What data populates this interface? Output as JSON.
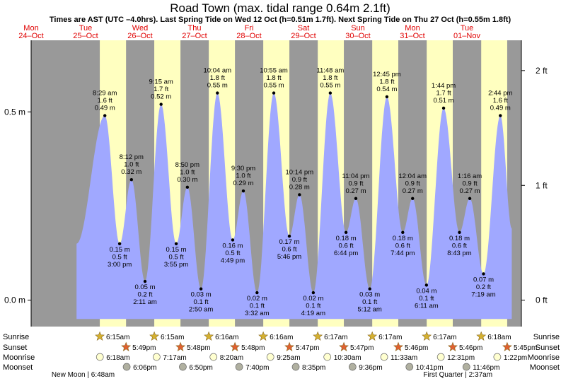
{
  "chart_data": {
    "type": "area",
    "title": "Road Town (max. tidal range 0.64m 2.1ft)",
    "subtitle": "Times are AST (UTC –4.0hrs). Last Spring Tide on Wed 12 Oct (h=0.51m 1.7ft). Next Spring Tide on Thu 27 Oct (h=0.55m 1.8ft)",
    "xlim": [
      "2022-10-24 00:00",
      "2022-11-02 00:00"
    ],
    "ylim_m": [
      -0.07,
      0.69
    ],
    "left_ticks": [
      {
        "value": 0.5,
        "label": "0.5 m"
      },
      {
        "value": 0.0,
        "label": "0.0 m"
      }
    ],
    "right_ticks": [
      {
        "value_ft": 2,
        "label": "2 ft"
      },
      {
        "value_ft": 1,
        "label": "1 ft"
      },
      {
        "value_ft": 0,
        "label": "0 ft"
      }
    ],
    "days": [
      {
        "dow": "Mon",
        "date": "24–Oct"
      },
      {
        "dow": "Tue",
        "date": "25–Oct"
      },
      {
        "dow": "Wed",
        "date": "26–Oct"
      },
      {
        "dow": "Thu",
        "date": "27–Oct"
      },
      {
        "dow": "Fri",
        "date": "28–Oct"
      },
      {
        "dow": "Sat",
        "date": "29–Oct"
      },
      {
        "dow": "Sun",
        "date": "30–Oct"
      },
      {
        "dow": "Mon",
        "date": "31–Oct"
      },
      {
        "dow": "Tue",
        "date": "01–Nov"
      }
    ],
    "tides": [
      {
        "date": "2022-10-25",
        "time": "08:29",
        "label": "8:29 am",
        "m": 0.49,
        "ft": 1.6,
        "type": "high"
      },
      {
        "date": "2022-10-25",
        "time": "15:00",
        "label": "3:00 pm",
        "m": 0.15,
        "ft": 0.5,
        "type": "low"
      },
      {
        "date": "2022-10-25",
        "time": "20:12",
        "label": "8:12 pm",
        "m": 0.32,
        "ft": 1.0,
        "type": "high"
      },
      {
        "date": "2022-10-26",
        "time": "02:11",
        "label": "2:11 am",
        "m": 0.05,
        "ft": 0.2,
        "type": "low"
      },
      {
        "date": "2022-10-26",
        "time": "09:15",
        "label": "9:15 am",
        "m": 0.52,
        "ft": 1.7,
        "type": "high"
      },
      {
        "date": "2022-10-26",
        "time": "15:55",
        "label": "3:55 pm",
        "m": 0.15,
        "ft": 0.5,
        "type": "low"
      },
      {
        "date": "2022-10-26",
        "time": "20:50",
        "label": "8:50 pm",
        "m": 0.3,
        "ft": 1.0,
        "type": "high"
      },
      {
        "date": "2022-10-27",
        "time": "02:50",
        "label": "2:50 am",
        "m": 0.03,
        "ft": 0.1,
        "type": "low"
      },
      {
        "date": "2022-10-27",
        "time": "10:04",
        "label": "10:04 am",
        "m": 0.55,
        "ft": 1.8,
        "type": "high"
      },
      {
        "date": "2022-10-27",
        "time": "16:49",
        "label": "4:49 pm",
        "m": 0.16,
        "ft": 0.5,
        "type": "low"
      },
      {
        "date": "2022-10-27",
        "time": "21:30",
        "label": "9:30 pm",
        "m": 0.29,
        "ft": 1.0,
        "type": "high"
      },
      {
        "date": "2022-10-28",
        "time": "03:32",
        "label": "3:32 am",
        "m": 0.02,
        "ft": 0.1,
        "type": "low"
      },
      {
        "date": "2022-10-28",
        "time": "10:55",
        "label": "10:55 am",
        "m": 0.55,
        "ft": 1.8,
        "type": "high"
      },
      {
        "date": "2022-10-28",
        "time": "17:46",
        "label": "5:46 pm",
        "m": 0.17,
        "ft": 0.6,
        "type": "low"
      },
      {
        "date": "2022-10-28",
        "time": "22:14",
        "label": "10:14 pm",
        "m": 0.28,
        "ft": 0.9,
        "type": "high"
      },
      {
        "date": "2022-10-29",
        "time": "04:19",
        "label": "4:19 am",
        "m": 0.02,
        "ft": 0.1,
        "type": "low"
      },
      {
        "date": "2022-10-29",
        "time": "11:48",
        "label": "11:48 am",
        "m": 0.55,
        "ft": 1.8,
        "type": "high"
      },
      {
        "date": "2022-10-29",
        "time": "18:44",
        "label": "6:44 pm",
        "m": 0.18,
        "ft": 0.6,
        "type": "low"
      },
      {
        "date": "2022-10-29",
        "time": "23:04",
        "label": "11:04 pm",
        "m": 0.27,
        "ft": 0.9,
        "type": "high"
      },
      {
        "date": "2022-10-30",
        "time": "05:12",
        "label": "5:12 am",
        "m": 0.03,
        "ft": 0.1,
        "type": "low"
      },
      {
        "date": "2022-10-30",
        "time": "12:45",
        "label": "12:45 pm",
        "m": 0.54,
        "ft": 1.8,
        "type": "high"
      },
      {
        "date": "2022-10-30",
        "time": "19:44",
        "label": "7:44 pm",
        "m": 0.18,
        "ft": 0.6,
        "type": "low"
      },
      {
        "date": "2022-10-31",
        "time": "00:04",
        "label": "12:04 am",
        "m": 0.27,
        "ft": 0.9,
        "type": "high"
      },
      {
        "date": "2022-10-31",
        "time": "06:11",
        "label": "6:11 am",
        "m": 0.04,
        "ft": 0.1,
        "type": "low"
      },
      {
        "date": "2022-10-31",
        "time": "13:44",
        "label": "1:44 pm",
        "m": 0.51,
        "ft": 1.7,
        "type": "high"
      },
      {
        "date": "2022-10-31",
        "time": "20:43",
        "label": "8:43 pm",
        "m": 0.18,
        "ft": 0.6,
        "type": "low"
      },
      {
        "date": "2022-11-01",
        "time": "01:16",
        "label": "1:16 am",
        "m": 0.27,
        "ft": 0.9,
        "type": "high"
      },
      {
        "date": "2022-11-01",
        "time": "07:19",
        "label": "7:19 am",
        "m": 0.07,
        "ft": 0.2,
        "type": "low"
      },
      {
        "date": "2022-11-01",
        "time": "14:44",
        "label": "2:44 pm",
        "m": 0.49,
        "ft": 1.6,
        "type": "high"
      }
    ],
    "row_labels": {
      "sunrise": "Sunrise",
      "sunset": "Sunset",
      "moonrise": "Moonrise",
      "moonset": "Moonset"
    },
    "sunrise": [
      {
        "date": "2022-10-25",
        "time": "06:15",
        "label": "6:15am"
      },
      {
        "date": "2022-10-26",
        "time": "06:15",
        "label": "6:15am"
      },
      {
        "date": "2022-10-27",
        "time": "06:16",
        "label": "6:16am"
      },
      {
        "date": "2022-10-28",
        "time": "06:16",
        "label": "6:16am"
      },
      {
        "date": "2022-10-29",
        "time": "06:17",
        "label": "6:17am"
      },
      {
        "date": "2022-10-30",
        "time": "06:17",
        "label": "6:17am"
      },
      {
        "date": "2022-10-31",
        "time": "06:17",
        "label": "6:17am"
      },
      {
        "date": "2022-11-01",
        "time": "06:18",
        "label": "6:18am"
      }
    ],
    "sunset": [
      {
        "date": "2022-10-25",
        "time": "17:49",
        "label": "5:49pm"
      },
      {
        "date": "2022-10-26",
        "time": "17:48",
        "label": "5:48pm"
      },
      {
        "date": "2022-10-27",
        "time": "17:48",
        "label": "5:48pm"
      },
      {
        "date": "2022-10-28",
        "time": "17:47",
        "label": "5:47pm"
      },
      {
        "date": "2022-10-29",
        "time": "17:47",
        "label": "5:47pm"
      },
      {
        "date": "2022-10-30",
        "time": "17:46",
        "label": "5:46pm"
      },
      {
        "date": "2022-10-31",
        "time": "17:46",
        "label": "5:46pm"
      },
      {
        "date": "2022-11-01",
        "time": "17:45",
        "label": "5:45pm"
      }
    ],
    "moonrise": [
      {
        "date": "2022-10-25",
        "time": "06:18",
        "label": "6:18am"
      },
      {
        "date": "2022-10-26",
        "time": "07:17",
        "label": "7:17am"
      },
      {
        "date": "2022-10-27",
        "time": "08:20",
        "label": "8:20am"
      },
      {
        "date": "2022-10-28",
        "time": "09:25",
        "label": "9:25am"
      },
      {
        "date": "2022-10-29",
        "time": "10:30",
        "label": "10:30am"
      },
      {
        "date": "2022-10-30",
        "time": "11:33",
        "label": "11:33am"
      },
      {
        "date": "2022-10-31",
        "time": "12:31",
        "label": "12:31pm"
      },
      {
        "date": "2022-11-01",
        "time": "13:22",
        "label": "1:22pm"
      }
    ],
    "moonset": [
      {
        "date": "2022-10-25",
        "time": "18:06",
        "label": "6:06pm"
      },
      {
        "date": "2022-10-26",
        "time": "18:50",
        "label": "6:50pm"
      },
      {
        "date": "2022-10-27",
        "time": "19:40",
        "label": "7:40pm"
      },
      {
        "date": "2022-10-28",
        "time": "20:35",
        "label": "8:35pm"
      },
      {
        "date": "2022-10-29",
        "time": "21:36",
        "label": "9:36pm"
      },
      {
        "date": "2022-10-30",
        "time": "22:41",
        "label": "10:41pm"
      },
      {
        "date": "2022-10-31",
        "time": "23:46",
        "label": "11:46pm"
      }
    ],
    "moon_phases": [
      {
        "label": "New Moon | 6:48am",
        "date": "2022-10-25",
        "time": "06:48"
      },
      {
        "label": "First Quarter | 2:37am",
        "date": "2022-11-01",
        "time": "02:37"
      }
    ],
    "colors": {
      "night": "#999999",
      "day": "#ffffc0",
      "tide": "#a0a8ff",
      "day_label": "#e00000",
      "sun_star": "#d4b030",
      "sunset_star": "#e06030",
      "moonrise": "#ffffd0",
      "moonset": "#b0b0a0"
    }
  }
}
